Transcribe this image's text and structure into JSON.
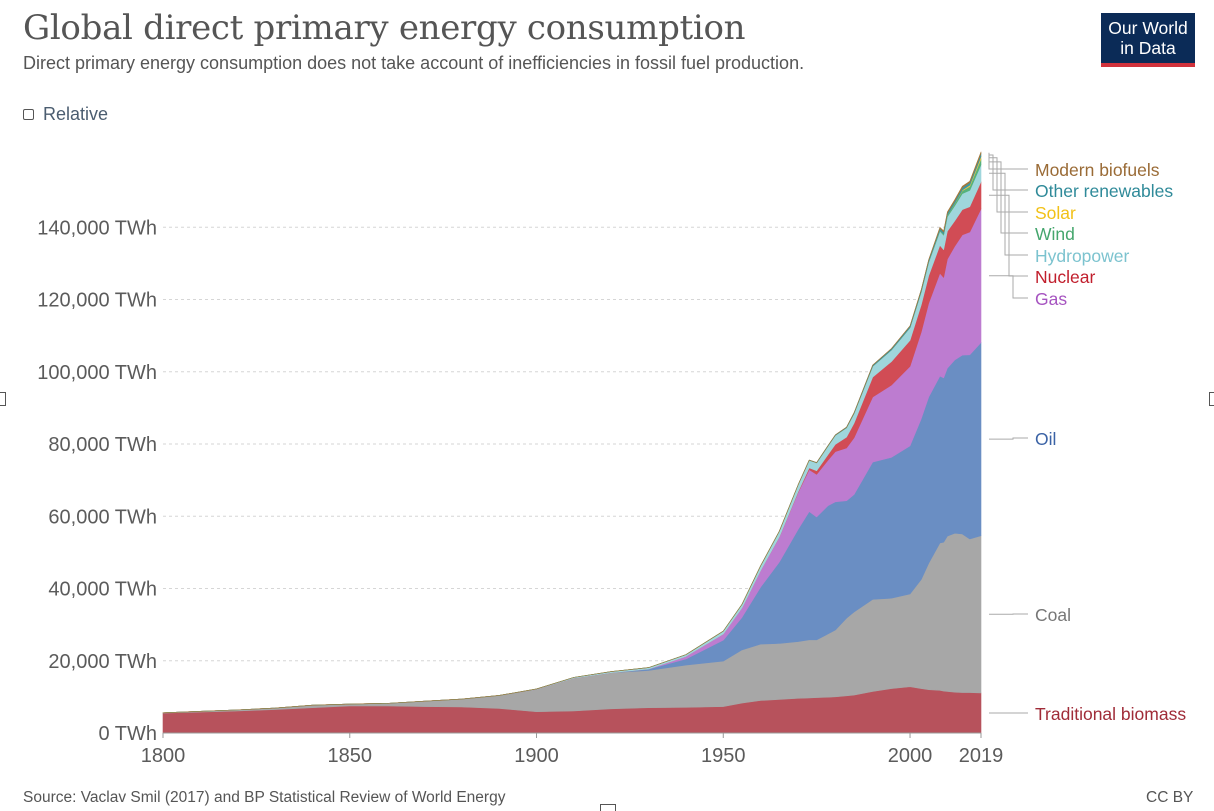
{
  "header": {
    "title": "Global direct primary energy consumption",
    "subtitle": "Direct primary energy consumption does not take account of inefficiencies in fossil fuel production."
  },
  "logo": {
    "line1": "Our World",
    "line2": "in Data"
  },
  "controls": {
    "relative_label": "Relative",
    "relative_checked": false
  },
  "footer": {
    "source": "Source: Vaclav Smil (2017) and BP Statistical Review of World Energy",
    "license": "CC BY"
  },
  "chart_data": {
    "type": "area",
    "stacked": true,
    "xlim": [
      1800,
      2019
    ],
    "ylim": [
      0,
      160000
    ],
    "x_ticks": [
      "1800",
      "1850",
      "1900",
      "1950",
      "2000",
      "2019"
    ],
    "y_ticks": [
      "0 TWh",
      "20,000 TWh",
      "40,000 TWh",
      "60,000 TWh",
      "80,000 TWh",
      "100,000 TWh",
      "120,000 TWh",
      "140,000 TWh"
    ],
    "grid": "horizontal-dashed",
    "legend": "right-inline",
    "x": [
      1800,
      1810,
      1820,
      1830,
      1840,
      1850,
      1860,
      1870,
      1880,
      1890,
      1900,
      1910,
      1920,
      1930,
      1940,
      1950,
      1955,
      1960,
      1965,
      1970,
      1973,
      1975,
      1978,
      1980,
      1983,
      1985,
      1990,
      1995,
      2000,
      2003,
      2005,
      2008,
      2009,
      2010,
      2012,
      2014,
      2016,
      2019
    ],
    "series": [
      {
        "name": "Traditional biomass",
        "color": "#b7525c",
        "values": [
          5500,
          5800,
          6100,
          6500,
          7000,
          7500,
          7500,
          7300,
          7200,
          6800,
          5900,
          6100,
          6700,
          7000,
          7100,
          7300,
          8300,
          9000,
          9300,
          9600,
          9700,
          9800,
          9900,
          10000,
          10300,
          10500,
          11500,
          12300,
          12800,
          12300,
          12000,
          11800,
          11600,
          11500,
          11300,
          11200,
          11200,
          11100
        ]
      },
      {
        "name": "Coal",
        "color": "#a7a7a7",
        "values": [
          100,
          200,
          300,
          400,
          700,
          500,
          700,
          1500,
          2200,
          3600,
          6200,
          9100,
          10000,
          10300,
          11700,
          12600,
          14700,
          15600,
          15500,
          15700,
          16100,
          16000,
          17500,
          18500,
          21500,
          23000,
          25500,
          25000,
          25700,
          30200,
          35000,
          40800,
          41200,
          43000,
          44000,
          43900,
          42500,
          43500
        ]
      },
      {
        "name": "Oil",
        "color": "#6a8ec3",
        "values": [
          0,
          0,
          0,
          0,
          0,
          0,
          0,
          0,
          0,
          0,
          0,
          0,
          0,
          400,
          1700,
          5800,
          9000,
          15800,
          22500,
          31000,
          35500,
          34000,
          35500,
          35500,
          32500,
          32500,
          38000,
          39000,
          41000,
          44500,
          46000,
          46200,
          45500,
          46500,
          48000,
          49500,
          51000,
          53500
        ]
      },
      {
        "name": "Gas",
        "color": "#bd7cd0",
        "values": [
          0,
          0,
          0,
          0,
          0,
          0,
          0,
          0,
          0,
          0,
          0,
          0,
          0,
          0,
          700,
          1700,
          2600,
          4600,
          6900,
          10200,
          11600,
          11800,
          12600,
          13900,
          14600,
          15700,
          18000,
          20000,
          22000,
          24000,
          26000,
          28500,
          27800,
          30200,
          31500,
          33300,
          34000,
          37000
        ]
      },
      {
        "name": "Nuclear",
        "color": "#d14c55",
        "values": [
          0,
          0,
          0,
          0,
          0,
          0,
          0,
          0,
          0,
          0,
          0,
          0,
          0,
          0,
          0,
          0,
          0,
          0,
          50,
          200,
          500,
          1000,
          1500,
          2000,
          3000,
          4000,
          5500,
          6500,
          7200,
          7500,
          7600,
          7700,
          7700,
          7700,
          7000,
          7000,
          7000,
          7500
        ]
      },
      {
        "name": "Hydropower",
        "color": "#9fd6dc",
        "values": [
          0,
          0,
          0,
          0,
          0,
          0,
          0,
          0,
          0,
          0,
          100,
          200,
          300,
          400,
          500,
          800,
          1000,
          1300,
          1600,
          1900,
          2100,
          2200,
          2400,
          2500,
          2600,
          2700,
          3000,
          3200,
          3500,
          3600,
          3700,
          3900,
          4000,
          4000,
          4200,
          4400,
          4500,
          4700
        ]
      },
      {
        "name": "Wind",
        "color": "#55b27c",
        "values": [
          0,
          0,
          0,
          0,
          0,
          0,
          0,
          0,
          0,
          0,
          0,
          0,
          0,
          0,
          0,
          0,
          0,
          0,
          0,
          0,
          0,
          0,
          0,
          0,
          0,
          0,
          0,
          10,
          40,
          80,
          120,
          250,
          300,
          400,
          600,
          800,
          1100,
          1600
        ]
      },
      {
        "name": "Solar",
        "color": "#f3c442",
        "values": [
          0,
          0,
          0,
          0,
          0,
          0,
          0,
          0,
          0,
          0,
          0,
          0,
          0,
          0,
          0,
          0,
          0,
          0,
          0,
          0,
          0,
          0,
          0,
          0,
          0,
          0,
          0,
          0,
          0,
          0,
          0,
          10,
          20,
          40,
          100,
          200,
          350,
          700
        ]
      },
      {
        "name": "Other renewables",
        "color": "#3b96a4",
        "values": [
          0,
          0,
          0,
          0,
          0,
          0,
          0,
          0,
          0,
          0,
          0,
          0,
          0,
          0,
          0,
          0,
          0,
          0,
          0,
          0,
          50,
          70,
          100,
          120,
          150,
          200,
          300,
          350,
          400,
          450,
          500,
          550,
          560,
          600,
          640,
          680,
          720,
          800
        ]
      },
      {
        "name": "Modern biofuels",
        "color": "#a5783b",
        "values": [
          0,
          0,
          0,
          0,
          0,
          0,
          0,
          0,
          0,
          0,
          0,
          0,
          0,
          0,
          0,
          0,
          0,
          0,
          0,
          0,
          0,
          0,
          0,
          10,
          20,
          30,
          40,
          50,
          60,
          100,
          130,
          250,
          280,
          300,
          320,
          360,
          380,
          450
        ]
      }
    ],
    "legend_colors": {
      "Modern biofuels": "#9a6b36",
      "Other renewables": "#2f8a99",
      "Solar": "#f2c118",
      "Wind": "#45a66d",
      "Hydropower": "#7cc3cf",
      "Nuclear": "#c11f2d",
      "Gas": "#a654c0",
      "Oil": "#3a62a5",
      "Coal": "#777777",
      "Traditional biomass": "#a02c38"
    }
  }
}
